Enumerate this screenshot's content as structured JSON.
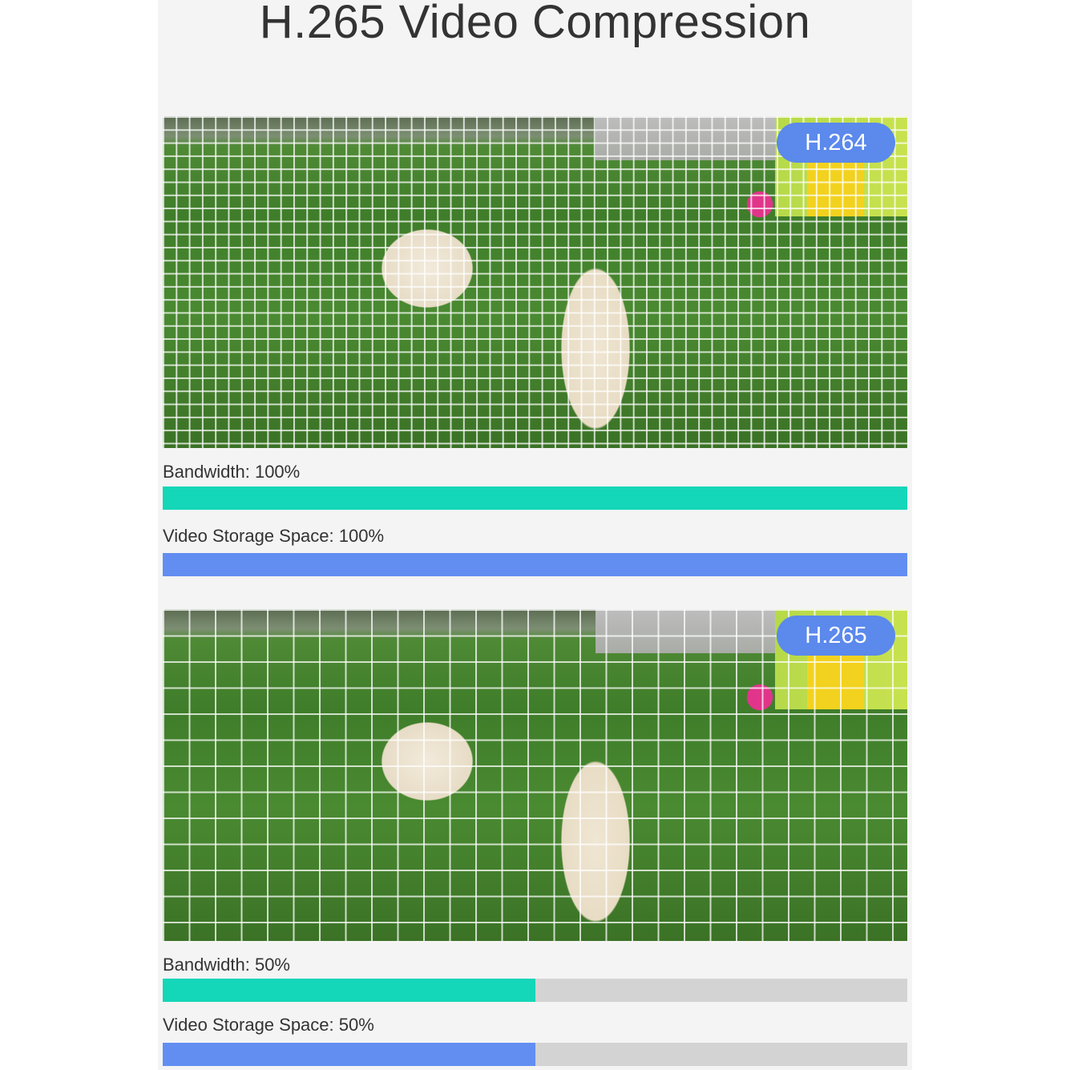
{
  "title": "H.265 Video Compression",
  "colors": {
    "bandwidth": "#14d6b8",
    "storage": "#628ef2",
    "track": "#d3d3d3",
    "badge": "#5b89ec"
  },
  "panels": [
    {
      "badge": "H.264",
      "bandwidth_label": "Bandwidth: 100%",
      "bandwidth_pct": 100,
      "storage_label": "Video Storage Space: 100%",
      "storage_pct": 100
    },
    {
      "badge": "H.265",
      "bandwidth_label": "Bandwidth: 50%",
      "bandwidth_pct": 50,
      "storage_label": "Video Storage Space: 50%",
      "storage_pct": 50
    }
  ]
}
